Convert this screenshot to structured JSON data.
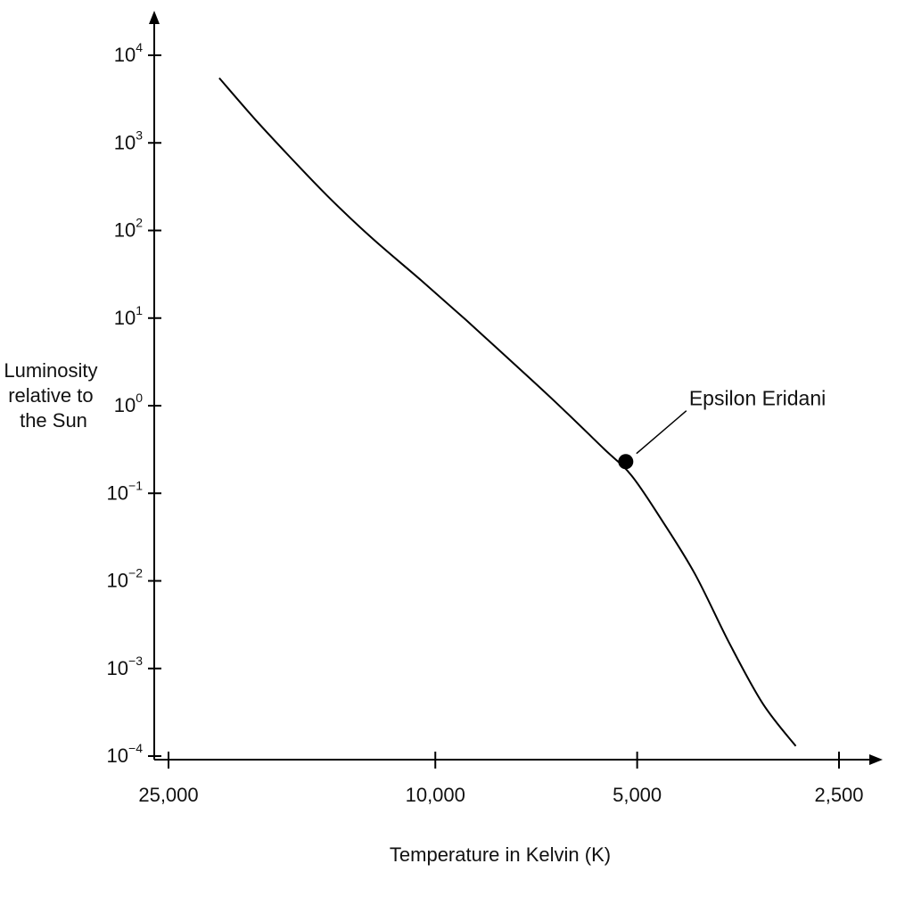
{
  "chart_data": {
    "type": "line",
    "title": "",
    "xlabel": "Temperature in Kelvin (K)",
    "ylabel": [
      "Luminosity",
      "relative to",
      "the Sun"
    ],
    "x_scale": "log",
    "x_reversed": true,
    "y_scale": "log",
    "xlim": [
      25000,
      2500
    ],
    "ylim": [
      0.0001,
      10000
    ],
    "x_ticks": [
      {
        "value": 25000,
        "label": "25,000"
      },
      {
        "value": 10000,
        "label": "10,000"
      },
      {
        "value": 5000,
        "label": "5,000"
      },
      {
        "value": 2500,
        "label": "2,500"
      }
    ],
    "y_ticks": [
      {
        "value": 10000,
        "base": "10",
        "exp": "4"
      },
      {
        "value": 1000,
        "base": "10",
        "exp": "3"
      },
      {
        "value": 100,
        "base": "10",
        "exp": "2"
      },
      {
        "value": 10,
        "base": "10",
        "exp": "1"
      },
      {
        "value": 1,
        "base": "10",
        "exp": "0"
      },
      {
        "value": 0.1,
        "base": "10",
        "exp": "−1"
      },
      {
        "value": 0.01,
        "base": "10",
        "exp": "−2"
      },
      {
        "value": 0.001,
        "base": "10",
        "exp": "−3"
      },
      {
        "value": 0.0001,
        "base": "10",
        "exp": "−4"
      }
    ],
    "grid": false,
    "series": [
      {
        "points": [
          [
            21000,
            5500
          ],
          [
            18500,
            1800
          ],
          [
            16500,
            700
          ],
          [
            14500,
            250
          ],
          [
            12500,
            85
          ],
          [
            10500,
            27
          ],
          [
            9000,
            9.5
          ],
          [
            7800,
            3.5
          ],
          [
            6700,
            1.2
          ],
          [
            5600,
            0.32
          ],
          [
            5100,
            0.16
          ],
          [
            4600,
            0.05
          ],
          [
            4100,
            0.012
          ],
          [
            3650,
            0.002
          ],
          [
            3250,
            0.0004
          ],
          [
            2900,
            0.00013
          ]
        ]
      }
    ],
    "annotations": [
      {
        "label": "Epsilon Eridani",
        "x": 5200,
        "y": 0.23
      }
    ],
    "colors": {
      "line": "#000000",
      "text": "#111111"
    }
  }
}
